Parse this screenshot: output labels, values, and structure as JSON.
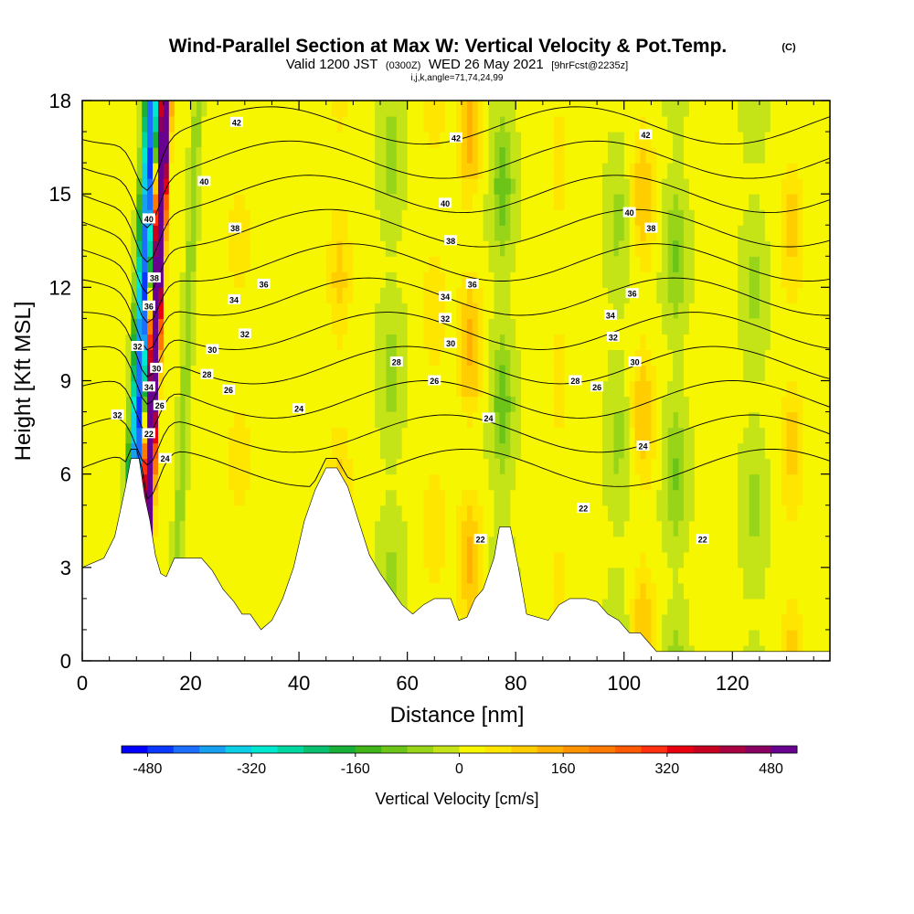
{
  "chart_data": {
    "type": "heatmap",
    "title": "Wind-Parallel Section at Max W: Vertical Velocity & Pot.Temp.",
    "title_mark": "(C)",
    "subtitle": {
      "valid": "Valid 1200 JST",
      "zulu": "(0300Z)",
      "date": "WED 26 May 2021",
      "forecast": "[9hrFcst@2235z]"
    },
    "indices": "i,j,k,angle=71,74,24,99",
    "xlabel": "Distance [nm]",
    "ylabel": "Height [Kft MSL]",
    "xlim": [
      0,
      138
    ],
    "ylim": [
      0,
      18
    ],
    "x_ticks": [
      "0",
      "20",
      "40",
      "60",
      "80",
      "100",
      "120"
    ],
    "x_tick_values": [
      0,
      20,
      40,
      60,
      80,
      100,
      120
    ],
    "y_ticks": [
      "0",
      "3",
      "6",
      "9",
      "12",
      "15",
      "18"
    ],
    "y_tick_values": [
      0,
      3,
      6,
      9,
      12,
      15,
      18
    ],
    "colorbar": {
      "label": "Vertical Velocity [cm/s]",
      "range": [
        -520,
        520
      ],
      "tick_labels": [
        "-480",
        "-320",
        "-160",
        "0",
        "160",
        "320",
        "480"
      ],
      "tick_values": [
        -480,
        -320,
        -160,
        0,
        160,
        320,
        480
      ],
      "colors": [
        "#0000ff",
        "#0a38ff",
        "#1c6eff",
        "#18a0f0",
        "#0ccfe6",
        "#00e8d0",
        "#00d6a0",
        "#08c070",
        "#18b038",
        "#40b418",
        "#6cc418",
        "#98d418",
        "#c4e418",
        "#f6f600",
        "#ffe600",
        "#ffcd00",
        "#ffb000",
        "#ff9400",
        "#ff7800",
        "#ff5a00",
        "#ff3010",
        "#e80010",
        "#c80020",
        "#a80040",
        "#880060",
        "#680090"
      ]
    },
    "updrafts": [
      {
        "x": 13.3,
        "w": 480
      },
      {
        "x": 12.6,
        "w": 320
      },
      {
        "x": 29.0,
        "w": 60
      },
      {
        "x": 47.5,
        "w": 90
      },
      {
        "x": 65.0,
        "w": 70
      },
      {
        "x": 71.5,
        "w": 130
      },
      {
        "x": 88.0,
        "w": 50
      },
      {
        "x": 103.5,
        "w": 110
      },
      {
        "x": 131.0,
        "w": 90
      }
    ],
    "downdrafts": [
      {
        "x": 11.0,
        "w": -400
      },
      {
        "x": 9.8,
        "w": -260
      },
      {
        "x": 19.0,
        "w": -80
      },
      {
        "x": 57.0,
        "w": -70
      },
      {
        "x": 77.5,
        "w": -110
      },
      {
        "x": 99.0,
        "w": -60
      },
      {
        "x": 109.5,
        "w": -90
      },
      {
        "x": 124.0,
        "w": -60
      }
    ],
    "terrain_profile": [
      [
        0,
        3.0
      ],
      [
        4,
        3.3
      ],
      [
        6,
        4.0
      ],
      [
        8,
        5.6
      ],
      [
        9,
        6.5
      ],
      [
        10.5,
        6.5
      ],
      [
        11.5,
        5.3
      ],
      [
        12.5,
        4.5
      ],
      [
        13.5,
        3.4
      ],
      [
        14.5,
        2.8
      ],
      [
        15.5,
        2.7
      ],
      [
        17,
        3.3
      ],
      [
        22,
        3.3
      ],
      [
        24,
        2.9
      ],
      [
        26,
        2.3
      ],
      [
        28,
        1.9
      ],
      [
        29.5,
        1.5
      ],
      [
        31,
        1.5
      ],
      [
        33,
        1.0
      ],
      [
        35,
        1.3
      ],
      [
        37,
        2.0
      ],
      [
        39,
        3.0
      ],
      [
        41,
        4.5
      ],
      [
        43,
        5.5
      ],
      [
        45,
        6.2
      ],
      [
        47,
        6.2
      ],
      [
        49,
        5.6
      ],
      [
        51,
        4.5
      ],
      [
        53,
        3.4
      ],
      [
        55,
        2.8
      ],
      [
        57,
        2.3
      ],
      [
        59,
        1.8
      ],
      [
        61,
        1.5
      ],
      [
        63,
        1.8
      ],
      [
        65,
        2.0
      ],
      [
        68,
        2.0
      ],
      [
        69.5,
        1.3
      ],
      [
        71,
        1.4
      ],
      [
        72.5,
        2.0
      ],
      [
        74,
        2.3
      ],
      [
        76,
        3.3
      ],
      [
        77,
        4.3
      ],
      [
        79,
        4.3
      ],
      [
        80.5,
        3.0
      ],
      [
        82,
        1.5
      ],
      [
        86,
        1.3
      ],
      [
        88,
        1.8
      ],
      [
        90,
        2.0
      ],
      [
        93,
        2.0
      ],
      [
        95,
        1.9
      ],
      [
        97,
        1.5
      ],
      [
        99,
        1.3
      ],
      [
        101,
        0.9
      ],
      [
        103,
        0.9
      ],
      [
        105,
        0.5
      ],
      [
        106,
        0.3
      ],
      [
        138,
        0.3
      ]
    ],
    "isentropes_K": [
      22,
      24,
      26,
      28,
      30,
      32,
      34,
      36,
      38,
      40,
      42
    ],
    "contour_labels": [
      {
        "text": "42",
        "x": 28.5,
        "y": 17.3
      },
      {
        "text": "42",
        "x": 69.0,
        "y": 16.8
      },
      {
        "text": "42",
        "x": 104.0,
        "y": 16.9
      },
      {
        "text": "40",
        "x": 22.5,
        "y": 15.4
      },
      {
        "text": "40",
        "x": 67.0,
        "y": 14.7
      },
      {
        "text": "40",
        "x": 101.0,
        "y": 14.4
      },
      {
        "text": "40",
        "x": 12.3,
        "y": 14.2
      },
      {
        "text": "38",
        "x": 28.2,
        "y": 13.9
      },
      {
        "text": "38",
        "x": 68.0,
        "y": 13.5
      },
      {
        "text": "38",
        "x": 105.0,
        "y": 13.9
      },
      {
        "text": "38",
        "x": 13.3,
        "y": 12.3
      },
      {
        "text": "36",
        "x": 33.5,
        "y": 12.1
      },
      {
        "text": "36",
        "x": 72.0,
        "y": 12.1
      },
      {
        "text": "36",
        "x": 101.5,
        "y": 11.8
      },
      {
        "text": "36",
        "x": 12.3,
        "y": 11.4
      },
      {
        "text": "34",
        "x": 28.0,
        "y": 11.6
      },
      {
        "text": "34",
        "x": 67.0,
        "y": 11.7
      },
      {
        "text": "34",
        "x": 97.5,
        "y": 11.1
      },
      {
        "text": "34",
        "x": 12.3,
        "y": 8.8
      },
      {
        "text": "32",
        "x": 30.0,
        "y": 10.5
      },
      {
        "text": "32",
        "x": 67.0,
        "y": 11.0
      },
      {
        "text": "32",
        "x": 98.0,
        "y": 10.4
      },
      {
        "text": "32",
        "x": 10.2,
        "y": 10.1
      },
      {
        "text": "32",
        "x": 6.5,
        "y": 7.9
      },
      {
        "text": "30",
        "x": 24.0,
        "y": 10.0
      },
      {
        "text": "30",
        "x": 68.0,
        "y": 10.2
      },
      {
        "text": "30",
        "x": 102.0,
        "y": 9.6
      },
      {
        "text": "30",
        "x": 13.7,
        "y": 9.4
      },
      {
        "text": "28",
        "x": 23.0,
        "y": 9.2
      },
      {
        "text": "28",
        "x": 58.0,
        "y": 9.6
      },
      {
        "text": "28",
        "x": 91.0,
        "y": 9.0
      },
      {
        "text": "26",
        "x": 27.0,
        "y": 8.7
      },
      {
        "text": "26",
        "x": 65.0,
        "y": 9.0
      },
      {
        "text": "26",
        "x": 95.0,
        "y": 8.8
      },
      {
        "text": "26",
        "x": 14.3,
        "y": 8.2
      },
      {
        "text": "24",
        "x": 40.0,
        "y": 8.1
      },
      {
        "text": "24",
        "x": 75.0,
        "y": 7.8
      },
      {
        "text": "24",
        "x": 103.5,
        "y": 6.9
      },
      {
        "text": "24",
        "x": 15.3,
        "y": 6.5
      },
      {
        "text": "22",
        "x": 12.3,
        "y": 7.3
      },
      {
        "text": "22",
        "x": 92.5,
        "y": 4.9
      },
      {
        "text": "22",
        "x": 73.5,
        "y": 3.9
      },
      {
        "text": "22",
        "x": 114.5,
        "y": 3.9
      }
    ]
  }
}
